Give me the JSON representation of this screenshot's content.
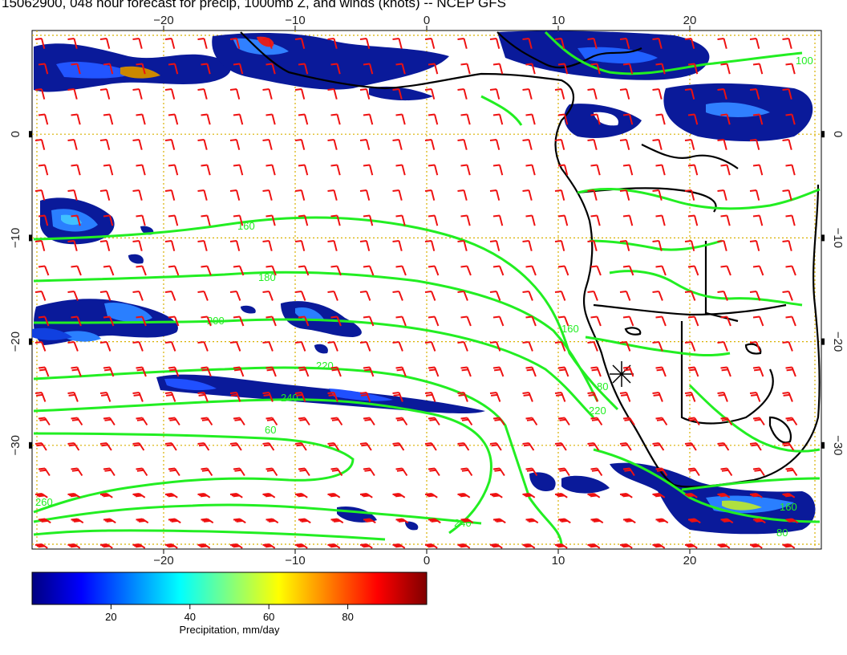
{
  "title": "15062900, 048 hour forecast for precip, 1000mb Z, and winds (knots) -- NCEP GFS",
  "map": {
    "lon_range": [
      -30,
      30
    ],
    "lat_range": [
      -40,
      10
    ],
    "lon_ticks": [
      "-20",
      "-10",
      "0",
      "10",
      "20"
    ],
    "lat_ticks": [
      "0",
      "-10",
      "-20",
      "-30"
    ],
    "gridline_style": "dotted yellow"
  },
  "contours": {
    "field": "1000mb Z",
    "color": "#22ee22",
    "labels": [
      "160",
      "180",
      "200",
      "220",
      "240",
      "260",
      "100",
      "60",
      "80"
    ]
  },
  "winds": {
    "color": "#ee1111",
    "units": "knots",
    "symbol": "wind barbs"
  },
  "colorbar": {
    "label": "Precipitation, mm/day",
    "ticks": [
      "20",
      "40",
      "60",
      "80"
    ],
    "range": [
      0,
      100
    ],
    "colors": [
      "#000080",
      "#0000ff",
      "#0080ff",
      "#00ffff",
      "#80ff80",
      "#ffff00",
      "#ff8000",
      "#ff0000",
      "#800000"
    ]
  }
}
